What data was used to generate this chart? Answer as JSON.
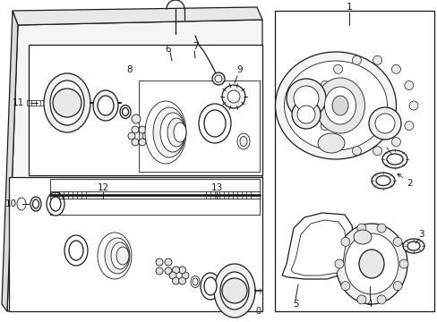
{
  "bg_color": "#ffffff",
  "line_color": "#1a1a1a",
  "fig_width": 4.89,
  "fig_height": 3.6,
  "dpi": 100,
  "skew": 0.18
}
